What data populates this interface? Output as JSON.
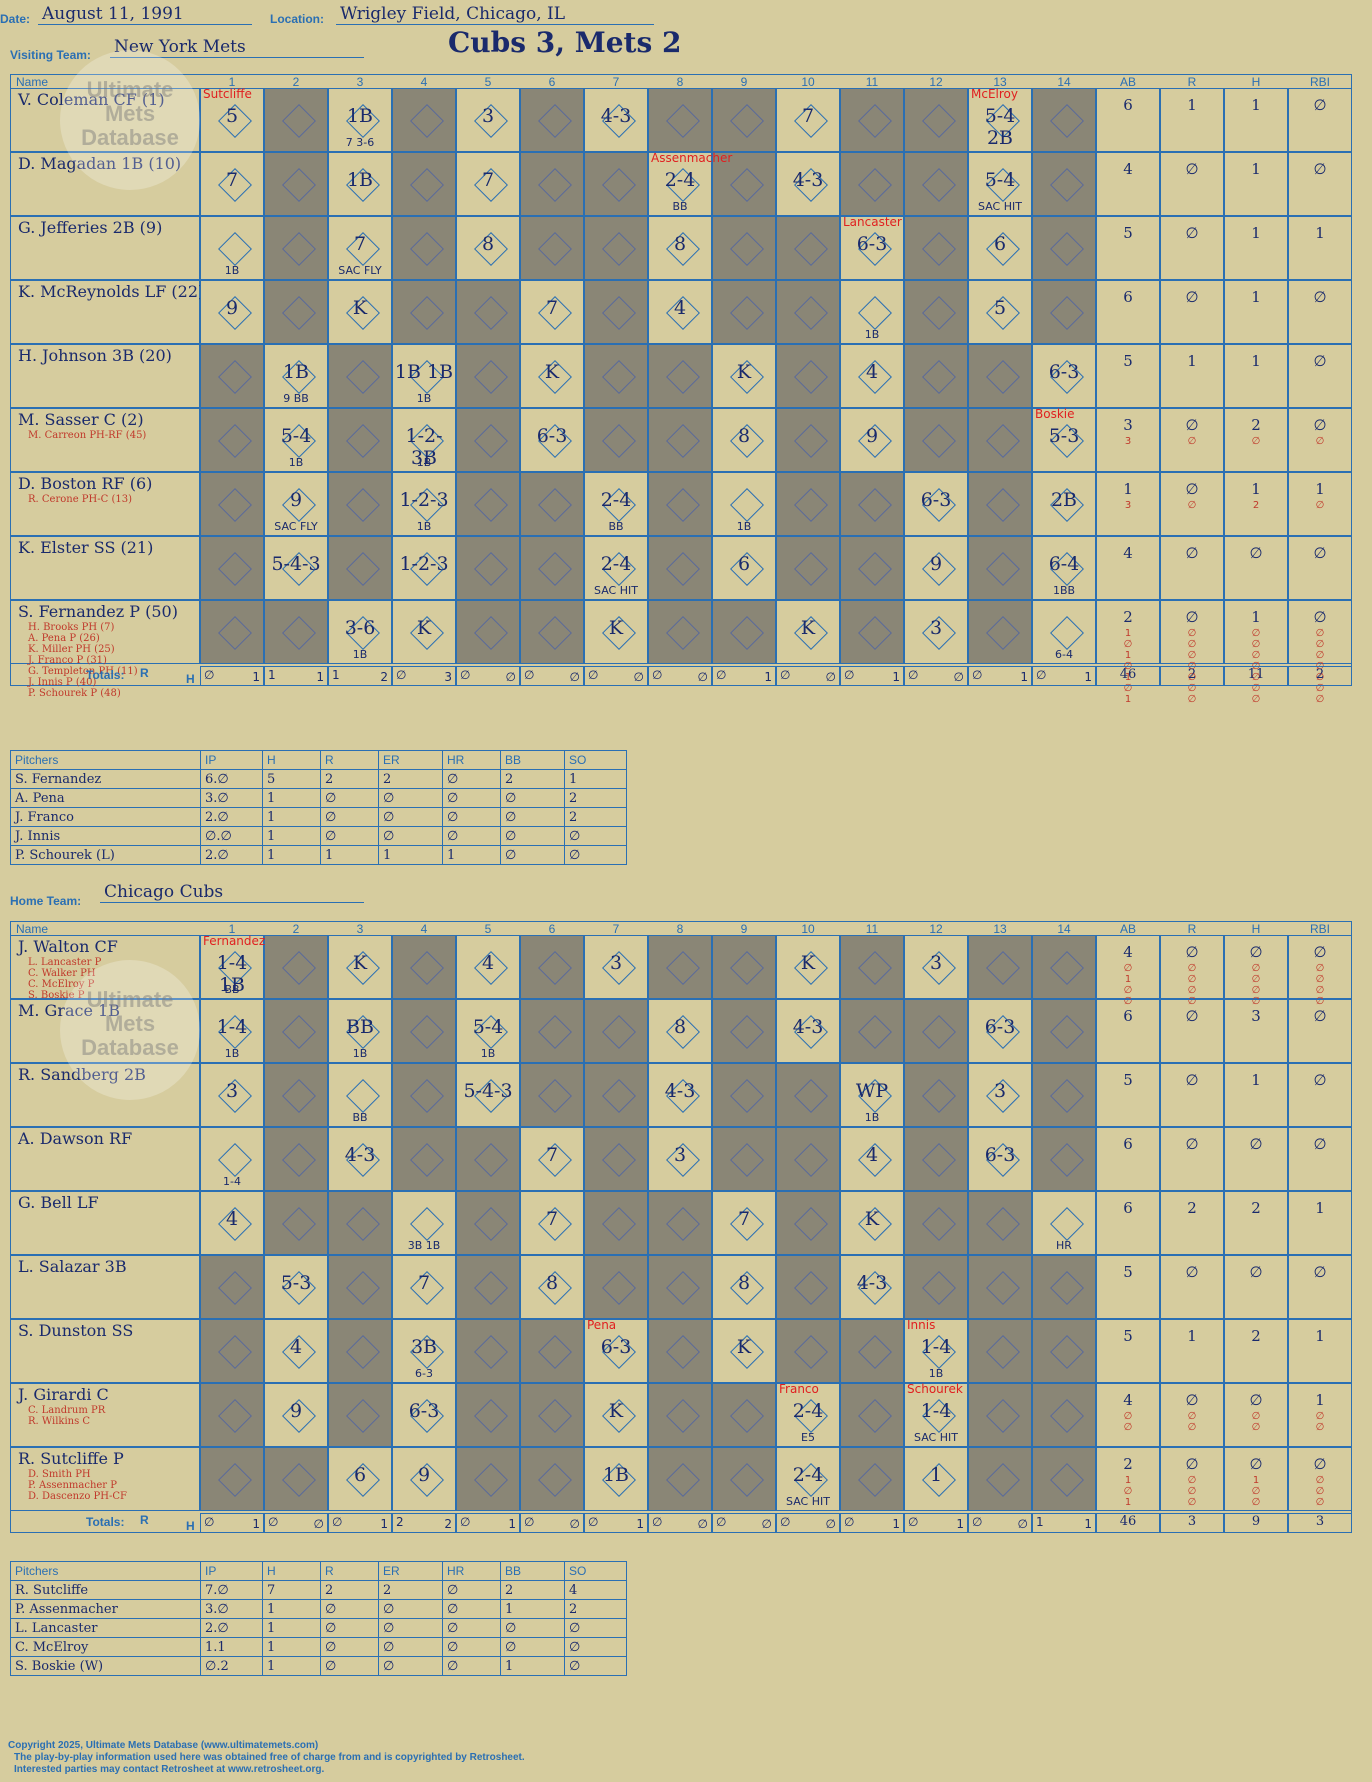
{
  "header": {
    "date_label": "Date:",
    "date": "August 11, 1991",
    "location_label": "Location:",
    "location": "Wrigley Field, Chicago, IL",
    "visiting_label": "Visiting Team:",
    "visiting_team": "New York Mets",
    "title": "Cubs 3, Mets 2",
    "home_label": "Home Team:",
    "home_team": "Chicago Cubs"
  },
  "watermark": "Ultimate Mets Database",
  "columns": {
    "name": "Name",
    "innings": [
      "1",
      "2",
      "3",
      "4",
      "5",
      "6",
      "7",
      "8",
      "9",
      "10",
      "11",
      "12",
      "13",
      "14"
    ],
    "stats": [
      "AB",
      "R",
      "H",
      "RBI"
    ]
  },
  "totals_label": "Totals:",
  "totals_rh": [
    "R",
    "H"
  ],
  "visitors": {
    "players": [
      {
        "name": "V. Coleman CF (1)",
        "subs": "",
        "ab": "6",
        "r": "1",
        "h": "1",
        "rbi": "∅",
        "sub_stats": [
          "",
          "",
          "",
          ""
        ]
      },
      {
        "name": "D. Magadan 1B (10)",
        "subs": "",
        "ab": "4",
        "r": "∅",
        "h": "1",
        "rbi": "∅",
        "sub_stats": [
          "",
          "",
          "",
          ""
        ]
      },
      {
        "name": "G. Jefferies 2B (9)",
        "subs": "",
        "ab": "5",
        "r": "∅",
        "h": "1",
        "rbi": "1",
        "sub_stats": [
          "",
          "",
          "",
          ""
        ]
      },
      {
        "name": "K. McReynolds LF (22)",
        "subs": "",
        "ab": "6",
        "r": "∅",
        "h": "1",
        "rbi": "∅",
        "sub_stats": [
          "",
          "",
          "",
          ""
        ]
      },
      {
        "name": "H. Johnson 3B (20)",
        "subs": "",
        "ab": "5",
        "r": "1",
        "h": "1",
        "rbi": "∅",
        "sub_stats": [
          "",
          "",
          "",
          ""
        ]
      },
      {
        "name": "M. Sasser C (2)",
        "subs": "M. Carreon PH-RF (45)",
        "ab": "3",
        "r": "∅",
        "h": "2",
        "rbi": "∅",
        "sub_stats": [
          "3",
          "∅",
          "∅",
          "∅"
        ]
      },
      {
        "name": "D. Boston RF (6)",
        "subs": "R. Cerone PH-C (13)",
        "ab": "1",
        "r": "∅",
        "h": "1",
        "rbi": "1",
        "sub_stats": [
          "3",
          "∅",
          "2",
          "∅"
        ]
      },
      {
        "name": "K. Elster SS (21)",
        "subs": "",
        "ab": "4",
        "r": "∅",
        "h": "∅",
        "rbi": "∅",
        "sub_stats": [
          "",
          "",
          "",
          ""
        ]
      },
      {
        "name": "S. Fernandez P (50)",
        "subs": "H. Brooks PH (7)\nA. Pena P (26)\nK. Miller PH (25)\nJ. Franco P (31)\nG. Templeton PH (11)\nJ. Innis P (40)\nP. Schourek P (48)",
        "ab": "2",
        "r": "∅",
        "h": "1",
        "rbi": "∅",
        "sub_stats": [
          "1\n∅\n1\n∅\n1\n∅\n1",
          "∅\n∅\n∅\n∅\n∅\n∅\n∅",
          "∅\n∅\n∅\n∅\n∅\n∅\n∅",
          "∅\n∅\n∅\n∅\n∅\n∅\n∅"
        ]
      }
    ],
    "plays": [
      [
        {
          "i": 1,
          "t": "5",
          "p": "Sutcliffe"
        },
        {
          "i": 3,
          "t": "1B",
          "n": "7    3-6"
        },
        {
          "i": 5,
          "t": "3"
        },
        {
          "i": 7,
          "t": "4-3"
        },
        {
          "i": 10,
          "t": "7"
        },
        {
          "i": 13,
          "t": "5-4 2B",
          "p": "McElroy"
        }
      ],
      [
        {
          "i": 1,
          "t": "7"
        },
        {
          "i": 3,
          "t": "1B"
        },
        {
          "i": 5,
          "t": "7"
        },
        {
          "i": 8,
          "t": "2-4",
          "n": "BB",
          "p": "Assenmacher"
        },
        {
          "i": 10,
          "t": "4-3"
        },
        {
          "i": 13,
          "t": "5-4",
          "n": "SAC HIT"
        }
      ],
      [
        {
          "i": 1,
          "t": "",
          "n": "1B"
        },
        {
          "i": 3,
          "t": "7",
          "n": "SAC FLY"
        },
        {
          "i": 5,
          "t": "8"
        },
        {
          "i": 8,
          "t": "8"
        },
        {
          "i": 11,
          "t": "6-3",
          "p": "Lancaster"
        },
        {
          "i": 13,
          "t": "6"
        }
      ],
      [
        {
          "i": 1,
          "t": "9"
        },
        {
          "i": 3,
          "t": "K"
        },
        {
          "i": 6,
          "t": "7"
        },
        {
          "i": 8,
          "t": "4"
        },
        {
          "i": 11,
          "t": "",
          "n": "1B"
        },
        {
          "i": 13,
          "t": "5"
        }
      ],
      [
        {
          "i": 2,
          "t": "1B",
          "n": "9    BB"
        },
        {
          "i": 4,
          "t": "1B 1B",
          "n": "1B"
        },
        {
          "i": 6,
          "t": "K"
        },
        {
          "i": 9,
          "t": "K"
        },
        {
          "i": 11,
          "t": "4"
        },
        {
          "i": 14,
          "t": "6-3"
        }
      ],
      [
        {
          "i": 2,
          "t": "5-4",
          "n": "1B"
        },
        {
          "i": 4,
          "t": "1-2-3B",
          "n": "1B"
        },
        {
          "i": 6,
          "t": "6-3"
        },
        {
          "i": 9,
          "t": "8"
        },
        {
          "i": 11,
          "t": "9"
        },
        {
          "i": 14,
          "t": "5-3",
          "p": "Boskie"
        }
      ],
      [
        {
          "i": 2,
          "t": "9",
          "n": "SAC FLY"
        },
        {
          "i": 4,
          "t": "1-2-3",
          "n": "1B"
        },
        {
          "i": 7,
          "t": "2-4",
          "n": "BB"
        },
        {
          "i": 9,
          "t": "",
          "n": "1B"
        },
        {
          "i": 12,
          "t": "6-3"
        },
        {
          "i": 14,
          "t": "2B"
        }
      ],
      [
        {
          "i": 2,
          "t": "5-4-3"
        },
        {
          "i": 4,
          "t": "1-2-3"
        },
        {
          "i": 7,
          "t": "2-4",
          "n": "SAC HIT"
        },
        {
          "i": 9,
          "t": "6"
        },
        {
          "i": 12,
          "t": "9"
        },
        {
          "i": 14,
          "t": "6-4",
          "n": "1BB"
        }
      ],
      [
        {
          "i": 3,
          "t": "3-6",
          "n": "1B"
        },
        {
          "i": 4,
          "t": "K"
        },
        {
          "i": 7,
          "t": "K"
        },
        {
          "i": 10,
          "t": "K"
        },
        {
          "i": 12,
          "t": "3"
        },
        {
          "i": 14,
          "t": "",
          "n": "6-4"
        }
      ]
    ],
    "totals": [
      [
        "∅",
        "1"
      ],
      [
        "1",
        "1"
      ],
      [
        "1",
        "2"
      ],
      [
        "∅",
        "3"
      ],
      [
        "∅",
        "∅"
      ],
      [
        "∅",
        "∅"
      ],
      [
        "∅",
        "∅"
      ],
      [
        "∅",
        "∅"
      ],
      [
        "∅",
        "1"
      ],
      [
        "∅",
        "∅"
      ],
      [
        "∅",
        "1"
      ],
      [
        "∅",
        "∅"
      ],
      [
        "∅",
        "1"
      ],
      [
        "∅",
        "1"
      ]
    ],
    "totals_stats": [
      "46",
      "2",
      "11",
      "2"
    ],
    "pitchers": {
      "headers": [
        "Pitchers",
        "IP",
        "H",
        "R",
        "ER",
        "HR",
        "BB",
        "SO"
      ],
      "rows": [
        [
          "S. Fernandez",
          "6.∅",
          "5",
          "2",
          "2",
          "∅",
          "2",
          "1"
        ],
        [
          "A. Pena",
          "3.∅",
          "1",
          "∅",
          "∅",
          "∅",
          "∅",
          "2"
        ],
        [
          "J. Franco",
          "2.∅",
          "1",
          "∅",
          "∅",
          "∅",
          "∅",
          "2"
        ],
        [
          "J. Innis",
          "∅.∅",
          "1",
          "∅",
          "∅",
          "∅",
          "∅",
          "∅"
        ],
        [
          "P. Schourek (L)",
          "2.∅",
          "1",
          "1",
          "1",
          "1",
          "∅",
          "∅"
        ]
      ]
    }
  },
  "home": {
    "players": [
      {
        "name": "J. Walton CF",
        "subs": "L. Lancaster P\nC. Walker PH\nC. McElroy P\nS. Boskie P",
        "ab": "4",
        "r": "∅",
        "h": "∅",
        "rbi": "∅",
        "sub_stats": [
          "∅\n1\n∅\n∅",
          "∅\n∅\n∅\n∅",
          "∅\n∅\n∅\n∅",
          "∅\n∅\n∅\n∅"
        ]
      },
      {
        "name": "M. Grace 1B",
        "subs": "",
        "ab": "6",
        "r": "∅",
        "h": "3",
        "rbi": "∅",
        "sub_stats": [
          "",
          "",
          "",
          ""
        ]
      },
      {
        "name": "R. Sandberg 2B",
        "subs": "",
        "ab": "5",
        "r": "∅",
        "h": "1",
        "rbi": "∅",
        "sub_stats": [
          "",
          "",
          "",
          ""
        ]
      },
      {
        "name": "A. Dawson RF",
        "subs": "",
        "ab": "6",
        "r": "∅",
        "h": "∅",
        "rbi": "∅",
        "sub_stats": [
          "",
          "",
          "",
          ""
        ]
      },
      {
        "name": "G. Bell LF",
        "subs": "",
        "ab": "6",
        "r": "2",
        "h": "2",
        "rbi": "1",
        "sub_stats": [
          "",
          "",
          "",
          ""
        ]
      },
      {
        "name": "L. Salazar 3B",
        "subs": "",
        "ab": "5",
        "r": "∅",
        "h": "∅",
        "rbi": "∅",
        "sub_stats": [
          "",
          "",
          "",
          ""
        ]
      },
      {
        "name": "S. Dunston SS",
        "subs": "",
        "ab": "5",
        "r": "1",
        "h": "2",
        "rbi": "1",
        "sub_stats": [
          "",
          "",
          "",
          ""
        ]
      },
      {
        "name": "J. Girardi C",
        "subs": "C. Landrum PR\nR. Wilkins C",
        "ab": "4",
        "r": "∅",
        "h": "∅",
        "rbi": "1",
        "sub_stats": [
          "∅\n∅",
          "∅\n∅",
          "∅\n∅",
          "∅\n∅"
        ]
      },
      {
        "name": "R. Sutcliffe P",
        "subs": "D. Smith PH\nP. Assenmacher P\nD. Dascenzo PH-CF",
        "ab": "2",
        "r": "∅",
        "h": "∅",
        "rbi": "∅",
        "sub_stats": [
          "1\n∅\n1",
          "∅\n∅\n∅",
          "1\n∅\n∅",
          "∅\n∅\n∅"
        ]
      }
    ],
    "plays": [
      [
        {
          "i": 1,
          "t": "1-4 1B",
          "n": "BB",
          "p": "Fernandez"
        },
        {
          "i": 3,
          "t": "K"
        },
        {
          "i": 5,
          "t": "4"
        },
        {
          "i": 7,
          "t": "3"
        },
        {
          "i": 10,
          "t": "K"
        },
        {
          "i": 12,
          "t": "3"
        }
      ],
      [
        {
          "i": 1,
          "t": "1-4",
          "n": "1B"
        },
        {
          "i": 3,
          "t": "BB",
          "n": "1B"
        },
        {
          "i": 5,
          "t": "5-4",
          "n": "1B"
        },
        {
          "i": 8,
          "t": "8"
        },
        {
          "i": 10,
          "t": "4-3"
        },
        {
          "i": 13,
          "t": "6-3"
        }
      ],
      [
        {
          "i": 1,
          "t": "3"
        },
        {
          "i": 3,
          "t": "",
          "n": "BB"
        },
        {
          "i": 5,
          "t": "5-4-3"
        },
        {
          "i": 8,
          "t": "4-3"
        },
        {
          "i": 11,
          "t": "WP",
          "n": "1B"
        },
        {
          "i": 13,
          "t": "3"
        }
      ],
      [
        {
          "i": 1,
          "t": "",
          "n": "1-4"
        },
        {
          "i": 3,
          "t": "4-3"
        },
        {
          "i": 6,
          "t": "7"
        },
        {
          "i": 8,
          "t": "3"
        },
        {
          "i": 11,
          "t": "4"
        },
        {
          "i": 13,
          "t": "6-3"
        }
      ],
      [
        {
          "i": 1,
          "t": "4"
        },
        {
          "i": 4,
          "t": "",
          "n": "3B 1B"
        },
        {
          "i": 6,
          "t": "7"
        },
        {
          "i": 9,
          "t": "7"
        },
        {
          "i": 11,
          "t": "K"
        },
        {
          "i": 14,
          "t": "",
          "n": "HR"
        }
      ],
      [
        {
          "i": 2,
          "t": "5-3"
        },
        {
          "i": 4,
          "t": "7"
        },
        {
          "i": 6,
          "t": "8"
        },
        {
          "i": 9,
          "t": "8"
        },
        {
          "i": 11,
          "t": "4-3"
        }
      ],
      [
        {
          "i": 2,
          "t": "4"
        },
        {
          "i": 4,
          "t": "3B",
          "n": "6-3"
        },
        {
          "i": 7,
          "t": "6-3",
          "p": "Pena"
        },
        {
          "i": 9,
          "t": "K"
        },
        {
          "i": 12,
          "t": "1-4",
          "n": "1B",
          "p": "Innis"
        }
      ],
      [
        {
          "i": 2,
          "t": "9"
        },
        {
          "i": 4,
          "t": "6-3"
        },
        {
          "i": 7,
          "t": "K"
        },
        {
          "i": 10,
          "t": "2-4",
          "n": "E5",
          "p": "Franco"
        },
        {
          "i": 12,
          "t": "1-4",
          "n": "SAC HIT",
          "p": "Schourek"
        }
      ],
      [
        {
          "i": 3,
          "t": "6"
        },
        {
          "i": 4,
          "t": "9"
        },
        {
          "i": 7,
          "t": "1B"
        },
        {
          "i": 10,
          "t": "2-4",
          "n": "SAC HIT"
        },
        {
          "i": 12,
          "t": "1"
        }
      ]
    ],
    "totals": [
      [
        "∅",
        "1"
      ],
      [
        "∅",
        "∅"
      ],
      [
        "∅",
        "1"
      ],
      [
        "2",
        "2"
      ],
      [
        "∅",
        "1"
      ],
      [
        "∅",
        "∅"
      ],
      [
        "∅",
        "1"
      ],
      [
        "∅",
        "∅"
      ],
      [
        "∅",
        "∅"
      ],
      [
        "∅",
        "∅"
      ],
      [
        "∅",
        "1"
      ],
      [
        "∅",
        "1"
      ],
      [
        "∅",
        "∅"
      ],
      [
        "1",
        "1"
      ]
    ],
    "totals_stats": [
      "46",
      "3",
      "9",
      "3"
    ],
    "pitchers": {
      "headers": [
        "Pitchers",
        "IP",
        "H",
        "R",
        "ER",
        "HR",
        "BB",
        "SO"
      ],
      "rows": [
        [
          "R. Sutcliffe",
          "7.∅",
          "7",
          "2",
          "2",
          "∅",
          "2",
          "4"
        ],
        [
          "P. Assenmacher",
          "3.∅",
          "1",
          "∅",
          "∅",
          "∅",
          "1",
          "2"
        ],
        [
          "L. Lancaster",
          "2.∅",
          "1",
          "∅",
          "∅",
          "∅",
          "∅",
          "∅"
        ],
        [
          "C. McElroy",
          "1.1",
          "1",
          "∅",
          "∅",
          "∅",
          "∅",
          "∅"
        ],
        [
          "S. Boskie (W)",
          "∅.2",
          "1",
          "∅",
          "∅",
          "∅",
          "1",
          "∅"
        ]
      ]
    }
  },
  "footer": {
    "line1": "Copyright 2025, Ultimate Mets Database (www.ultimatemets.com)",
    "line2": "The play-by-play information used here was obtained free of charge from and is copyrighted by Retrosheet.",
    "line3": "Interested parties may contact Retrosheet at www.retrosheet.org."
  }
}
